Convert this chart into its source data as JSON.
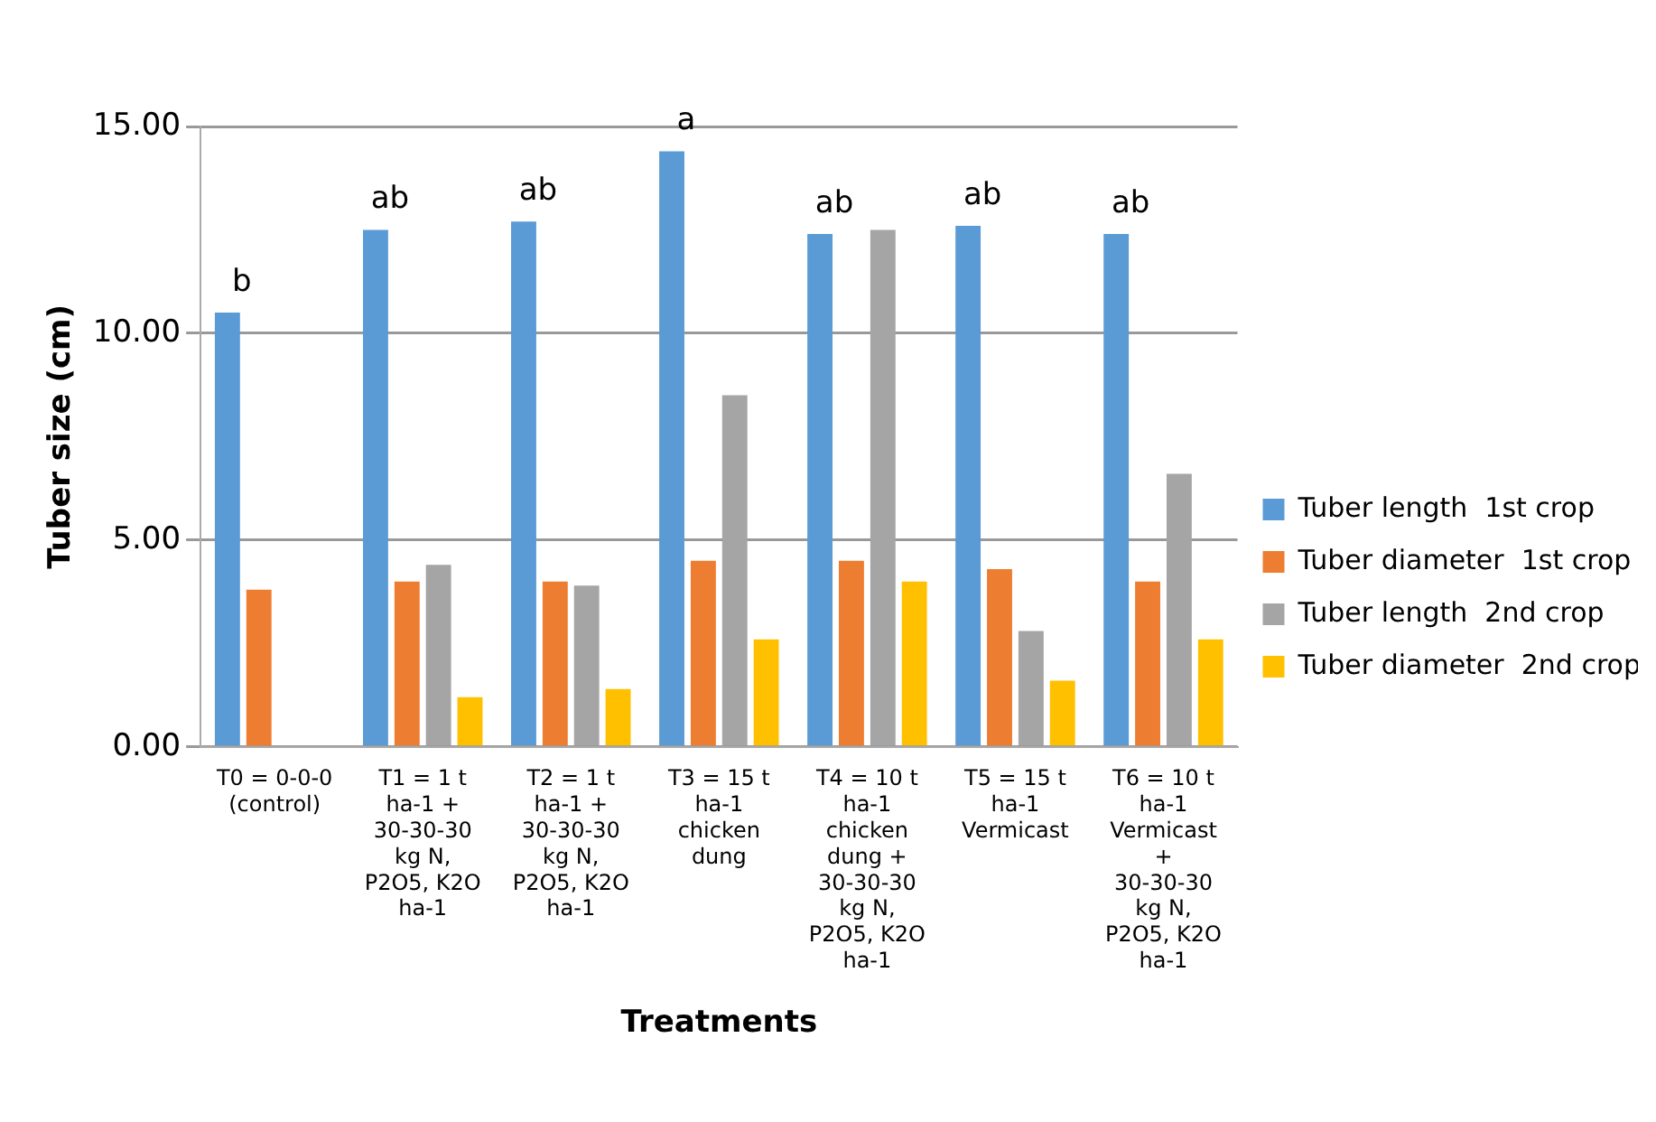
{
  "chart_data": {
    "type": "bar",
    "xlabel": "Treatments",
    "ylabel": "Tuber size (cm)",
    "categories": [
      "T0 = 0-0-0 (control)",
      "T1 = 1 t ha-1 + 30-30-30 kg N, P2O5, K2O ha-1",
      "T2 = 1 t ha-1 + 30-30-30 kg N, P2O5, K2O ha-1",
      "T3 = 15 t ha-1 chicken dung",
      "T4 = 10 t ha-1 chicken dung + 30-30-30 kg N, P2O5, K2O ha-1",
      "T5 = 15 t ha-1 Vermicast",
      "T6 = 10 t ha-1 Vermicast + 30-30-30 kg N, P2O5, K2O ha-1"
    ],
    "series": [
      {
        "name": "Tuber length  1st crop",
        "color": "#5b9bd5",
        "values": [
          10.5,
          12.5,
          12.7,
          14.4,
          12.4,
          12.6,
          12.4
        ]
      },
      {
        "name": "Tuber diameter  1st crop",
        "color": "#ed7d31",
        "values": [
          3.8,
          4.0,
          4.0,
          4.5,
          4.5,
          4.3,
          4.0
        ]
      },
      {
        "name": "Tuber length  2nd crop",
        "color": "#a5a5a5",
        "values": [
          0,
          4.4,
          3.9,
          8.5,
          12.5,
          2.8,
          6.6
        ]
      },
      {
        "name": "Tuber diameter  2nd crop",
        "color": "#ffc000",
        "values": [
          0,
          1.2,
          1.4,
          2.6,
          4.0,
          1.6,
          2.6
        ]
      }
    ],
    "ylim": [
      0,
      15
    ],
    "yticks": [
      {
        "value": 0,
        "label": "0.00"
      },
      {
        "value": 5,
        "label": "5.00"
      },
      {
        "value": 10,
        "label": "10.00"
      },
      {
        "value": 15,
        "label": "15.00"
      }
    ],
    "grid": "y",
    "legend": "right",
    "annotations": [
      "b",
      "ab",
      "ab",
      "a",
      "ab",
      "ab",
      "ab"
    ]
  }
}
